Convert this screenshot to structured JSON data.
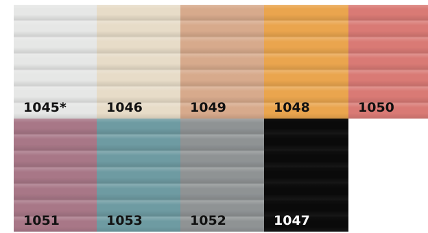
{
  "swatches": [
    {
      "code": "1045*",
      "color": "#e6e7e6",
      "text_color": "#111111"
    },
    {
      "code": "1046",
      "color": "#e7dcc8",
      "text_color": "#111111"
    },
    {
      "code": "1049",
      "color": "#d7aa8c",
      "text_color": "#111111"
    },
    {
      "code": "1048",
      "color": "#eaa54e",
      "text_color": "#111111"
    },
    {
      "code": "1050",
      "color": "#d97a75",
      "text_color": "#111111"
    },
    {
      "code": "1051",
      "color": "#a87787",
      "text_color": "#111111"
    },
    {
      "code": "1053",
      "color": "#6e9ba2",
      "text_color": "#111111"
    },
    {
      "code": "1052",
      "color": "#8f9394",
      "text_color": "#111111"
    },
    {
      "code": "1047",
      "color": "#0a0a0a",
      "text_color": "#ffffff"
    }
  ]
}
